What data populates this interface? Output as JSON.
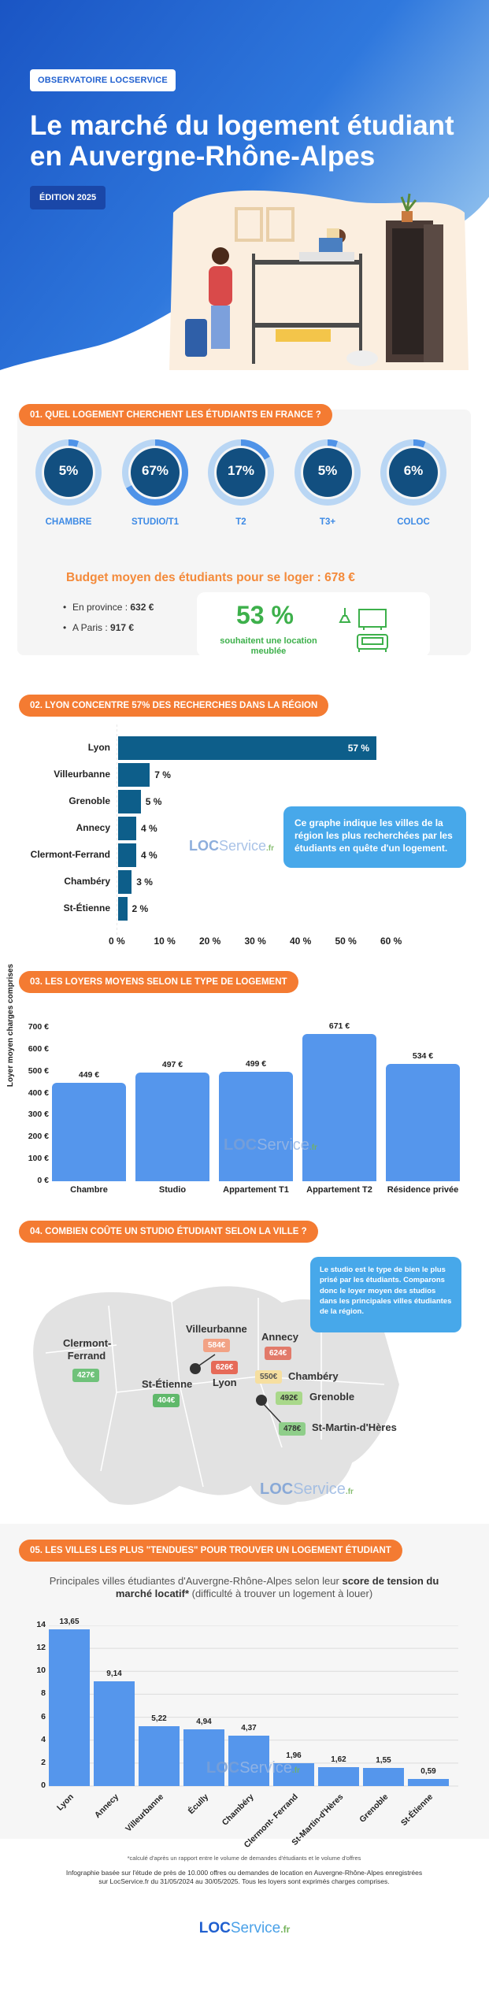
{
  "hero": {
    "brand": "OBSERVATOIRE LOCSERVICE",
    "title": "Le marché du logement étudiant en Auvergne-Rhône-Alpes",
    "edition": "ÉDITION 2025"
  },
  "section1": {
    "header": "01. QUEL LOGEMENT CHERCHENT LES ÉTUDIANTS EN FRANCE ?",
    "rings": [
      {
        "value": "5%",
        "label": "CHAMBRE",
        "fraction": 0.05
      },
      {
        "value": "67%",
        "label": "STUDIO/T1",
        "fraction": 0.67
      },
      {
        "value": "17%",
        "label": "T2",
        "fraction": 0.17
      },
      {
        "value": "5%",
        "label": "T3+",
        "fraction": 0.05
      },
      {
        "value": "6%",
        "label": "COLOC",
        "fraction": 0.06
      }
    ],
    "budget": "Budget moyen des étudiants pour se loger : 678 €",
    "province_label": "En province : ",
    "province_value": "632 €",
    "paris_label": "A Paris : ",
    "paris_value": "917 €",
    "meuble_pct": "53 %",
    "meuble_text": "souhaitent une location meublée"
  },
  "section2": {
    "header": "02. LYON CONCENTRE 57% DES RECHERCHES DANS LA RÉGION",
    "note": "Ce graphe indique les villes de la région les plus recherchées par les étudiants en quête d'un logement.",
    "watermark": "LOC",
    "watermark_s": "Service",
    "watermark_fr": ".fr"
  },
  "section3": {
    "header": "03. LES LOYERS MOYENS SELON LE TYPE DE LOGEMENT",
    "ylabel": "Loyer moyen charges comprises"
  },
  "section4": {
    "header": "04. COMBIEN COÛTE UN STUDIO ÉTUDIANT SELON LA VILLE ?",
    "note": "Le studio est le type de bien le plus prisé par les étudiants. Comparons donc le loyer moyen des studios dans les principales villes étudiantes de la région.",
    "cities": {
      "clermont": "Clermont-Ferrand",
      "clermont_price": "427€",
      "villeurbanne": "Villeurbanne",
      "villeurbanne_price": "584€",
      "annecy": "Annecy",
      "annecy_price": "624€",
      "lyon": "Lyon",
      "lyon_price": "626€",
      "chambery": "Chambéry",
      "chambery_price": "550€",
      "saintetienne": "St-Étienne",
      "saintetienne_price": "404€",
      "grenoble": "Grenoble",
      "grenoble_price": "492€",
      "smh": "St-Martin-d'Hères",
      "smh_price": "478€"
    }
  },
  "section5": {
    "header": "05. LES VILLES LES PLUS \"TENDUES\" POUR TROUVER UN LOGEMENT ÉTUDIANT",
    "sub_pre": "Principales villes étudiantes d'Auvergne-Rhône-Alpes selon leur ",
    "sub_bold": "score de tension du marché locatif*",
    "sub_post": " (difficulté à trouver un logement à louer)"
  },
  "footer": {
    "asterisk": "*calculé d'après un rapport entre le volume de demandes d'étudiants et le volume d'offres",
    "note": "Infographie basée sur l'étude de près de 10.000 offres ou demandes de location en Auvergne-Rhône-Alpes enregistrées sur LocService.fr du 31/05/2024 au 30/05/2025. Tous les loyers sont exprimés charges comprises.",
    "logo_a": "LOC",
    "logo_b": "Service",
    "logo_c": ".fr"
  },
  "chart_data": [
    {
      "type": "bar",
      "orientation": "horizontal",
      "categories": [
        "Lyon",
        "Villeurbanne",
        "Grenoble",
        "Annecy",
        "Clermont-Ferrand",
        "Chambéry",
        "St-Étienne"
      ],
      "values": [
        57,
        7,
        5,
        4,
        4,
        3,
        2
      ],
      "value_labels": [
        "57 %",
        "7 %",
        "5 %",
        "4 %",
        "4 %",
        "3 %",
        "2 %"
      ],
      "xlim": [
        0,
        60
      ],
      "xticks": [
        "0 %",
        "10 %",
        "20 %",
        "30 %",
        "40 %",
        "50 %",
        "60 %"
      ],
      "color": "#0d5e8a"
    },
    {
      "type": "bar",
      "categories": [
        "Chambre",
        "Studio",
        "Appartement T1",
        "Appartement T2",
        "Résidence privée"
      ],
      "values": [
        449,
        497,
        499,
        671,
        534
      ],
      "value_labels": [
        "449 €",
        "497 €",
        "499 €",
        "671 €",
        "534 €"
      ],
      "ylabel": "Loyer moyen charges comprises",
      "ylim": [
        0,
        700
      ],
      "yticks": [
        "0 €",
        "100 €",
        "200 €",
        "300 €",
        "400 €",
        "500 €",
        "600 €",
        "700 €"
      ],
      "color": "#5596ec"
    },
    {
      "type": "bar",
      "categories": [
        "Lyon",
        "Annecy",
        "Villeurbanne",
        "Écully",
        "Chambéry",
        "Clermont- Ferrand",
        "St-Martin-d'Hères",
        "Grenoble",
        "St-Étienne"
      ],
      "values": [
        13.65,
        9.14,
        5.22,
        4.94,
        4.37,
        1.96,
        1.62,
        1.55,
        0.59
      ],
      "value_labels": [
        "13,65",
        "9,14",
        "5,22",
        "4,94",
        "4,37",
        "1,96",
        "1,62",
        "1,55",
        "0,59"
      ],
      "ylim": [
        0,
        14
      ],
      "yticks": [
        "0",
        "2",
        "4",
        "6",
        "8",
        "10",
        "12",
        "14"
      ],
      "color": "#5596ec"
    }
  ]
}
